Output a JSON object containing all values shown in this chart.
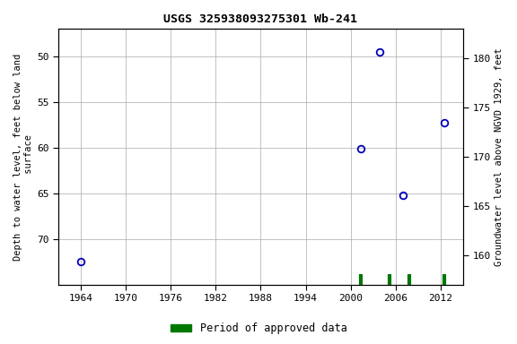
{
  "title": "USGS 325938093275301 Wb-241",
  "ylabel_left": "Depth to water level, feet below land\n surface",
  "ylabel_right": "Groundwater level above NGVD 1929, feet",
  "data_points": [
    {
      "year": 1964.0,
      "depth": 72.5
    },
    {
      "year": 2001.3,
      "depth": 60.1
    },
    {
      "year": 2003.8,
      "depth": 49.6
    },
    {
      "year": 2007.0,
      "depth": 65.2
    },
    {
      "year": 2012.5,
      "depth": 57.3
    }
  ],
  "approved_ticks": [
    2001.3,
    2005.2,
    2007.8,
    2012.5
  ],
  "xlim": [
    1961,
    2015
  ],
  "ylim_left_top": 47,
  "ylim_left_bottom": 75,
  "ylim_right_top": 183,
  "ylim_right_bottom": 157,
  "xticks": [
    1964,
    1970,
    1976,
    1982,
    1988,
    1994,
    2000,
    2006,
    2012
  ],
  "yticks_left": [
    50,
    55,
    60,
    65,
    70
  ],
  "yticks_right": [
    160,
    165,
    170,
    175,
    180
  ],
  "point_color": "#0000bb",
  "approved_color": "#007700",
  "bg_color": "#ffffff",
  "grid_color": "#aaaaaa",
  "title_fontsize": 9.5,
  "tick_fontsize": 8,
  "label_fontsize": 7.5
}
